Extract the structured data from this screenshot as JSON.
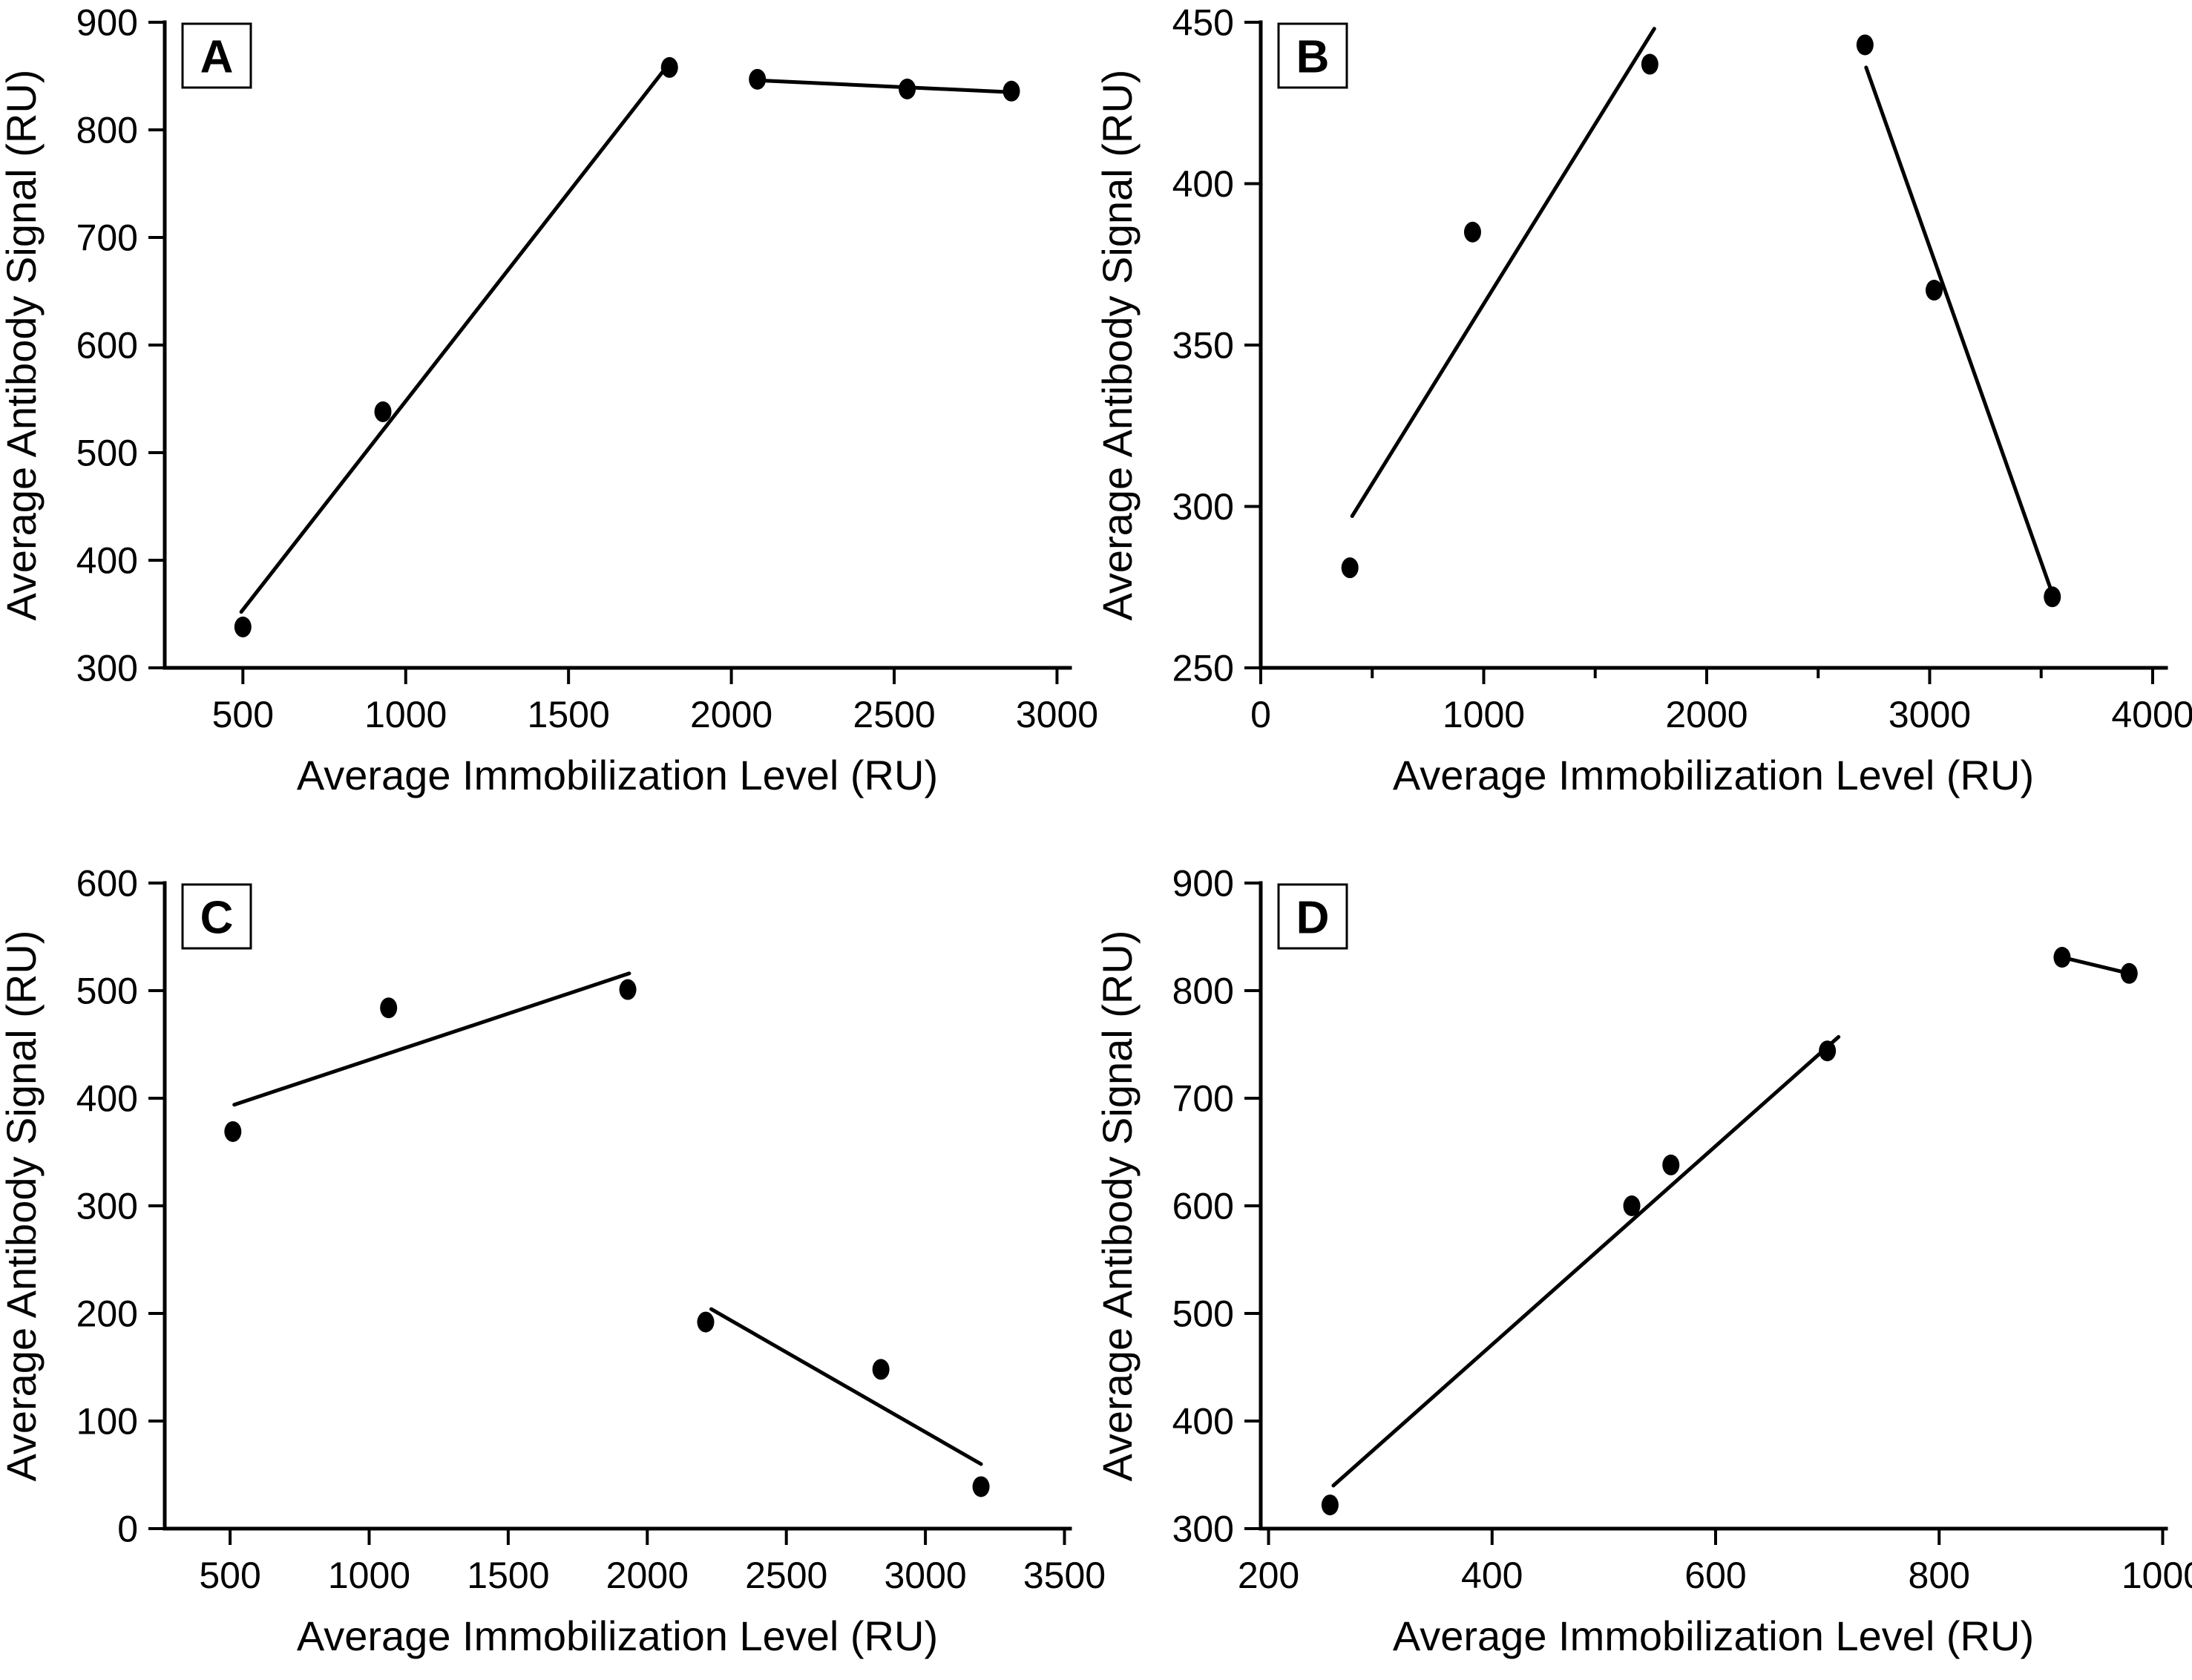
{
  "figure": {
    "background": "#ffffff",
    "ink_color": "#000000",
    "panel_labels": [
      "A",
      "B",
      "C",
      "D"
    ]
  },
  "axis_titles": {
    "x": "Average Immobilization Level (RU)",
    "y": "Average Antibody Signal (RU)"
  },
  "chart_data": [
    {
      "type": "scatter",
      "panel_label": "A",
      "title": "",
      "xlabel": "Average Immobilization Level (RU)",
      "ylabel": "Average Antibody Signal (RU)",
      "xlim": [
        260,
        3040
      ],
      "ylim": [
        300,
        900
      ],
      "xticks": [
        500,
        1000,
        1500,
        2000,
        2500,
        3000
      ],
      "xticks_minor": [],
      "yticks": [
        300,
        400,
        500,
        600,
        700,
        800,
        900
      ],
      "grid": false,
      "legend": null,
      "marker": "filled-circle",
      "points": [
        [
          500,
          338
        ],
        [
          930,
          538
        ],
        [
          1810,
          858
        ],
        [
          2080,
          847
        ],
        [
          2540,
          838
        ],
        [
          2860,
          836
        ]
      ],
      "trend_lines": [
        {
          "from": [
            495,
            352
          ],
          "to": [
            1815,
            864
          ]
        },
        {
          "from": [
            2080,
            846
          ],
          "to": [
            2860,
            835
          ]
        }
      ]
    },
    {
      "type": "scatter",
      "panel_label": "B",
      "title": "",
      "xlabel": "Average Immobilization Level (RU)",
      "ylabel": "Average Antibody Signal (RU)",
      "xlim": [
        0,
        4060
      ],
      "ylim": [
        250,
        450
      ],
      "xticks": [
        0,
        1000,
        2000,
        3000,
        4000
      ],
      "xticks_minor": [
        500,
        1500,
        2500,
        3500
      ],
      "yticks": [
        250,
        300,
        350,
        400,
        450
      ],
      "grid": false,
      "legend": null,
      "marker": "filled-circle",
      "points": [
        [
          400,
          281
        ],
        [
          950,
          385
        ],
        [
          1745,
          437
        ],
        [
          2710,
          443
        ],
        [
          3020,
          367
        ],
        [
          3550,
          272
        ]
      ],
      "trend_lines": [
        {
          "from": [
            410,
            297
          ],
          "to": [
            1765,
            448
          ]
        },
        {
          "from": [
            2715,
            436
          ],
          "to": [
            3550,
            273
          ]
        }
      ]
    },
    {
      "type": "scatter",
      "panel_label": "C",
      "title": "",
      "xlabel": "Average Immobilization Level (RU)",
      "ylabel": "Average Antibody Signal (RU)",
      "xlim": [
        265,
        3520
      ],
      "ylim": [
        0,
        600
      ],
      "xticks": [
        500,
        1000,
        1500,
        2000,
        2500,
        3000,
        3500
      ],
      "xticks_minor": [],
      "yticks": [
        0,
        100,
        200,
        300,
        400,
        500,
        600
      ],
      "grid": false,
      "legend": null,
      "marker": "filled-circle",
      "points": [
        [
          510,
          369
        ],
        [
          1070,
          484
        ],
        [
          1930,
          501
        ],
        [
          2210,
          192
        ],
        [
          2840,
          148
        ],
        [
          3200,
          39
        ]
      ],
      "trend_lines": [
        {
          "from": [
            515,
            394
          ],
          "to": [
            1935,
            516
          ]
        },
        {
          "from": [
            2230,
            204
          ],
          "to": [
            3200,
            60
          ]
        }
      ]
    },
    {
      "type": "scatter",
      "panel_label": "D",
      "title": "",
      "xlabel": "Average Immobilization Level (RU)",
      "ylabel": "Average Antibody Signal (RU)",
      "xlim": [
        193,
        1003
      ],
      "ylim": [
        300,
        900
      ],
      "xticks": [
        200,
        400,
        600,
        800,
        1000
      ],
      "xticks_minor": [],
      "yticks": [
        300,
        400,
        500,
        600,
        700,
        800,
        900
      ],
      "grid": false,
      "legend": null,
      "marker": "filled-circle",
      "points": [
        [
          255,
          322
        ],
        [
          525,
          600
        ],
        [
          560,
          638
        ],
        [
          700,
          744
        ],
        [
          910,
          831
        ],
        [
          970,
          816
        ]
      ],
      "trend_lines": [
        {
          "from": [
            258,
            340
          ],
          "to": [
            710,
            757
          ]
        },
        {
          "from": [
            910,
            831
          ],
          "to": [
            970,
            816
          ]
        }
      ]
    }
  ]
}
